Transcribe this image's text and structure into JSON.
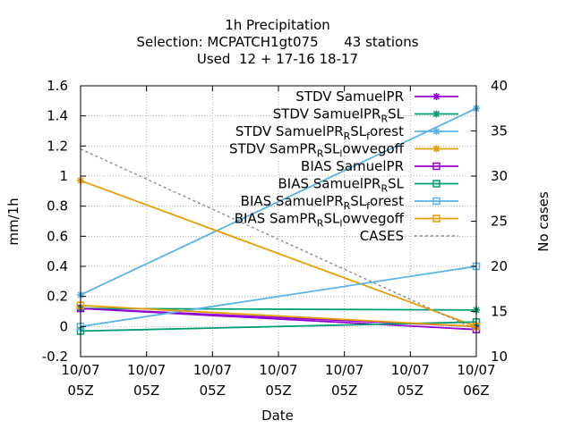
{
  "chart_data": {
    "type": "line",
    "title_lines": [
      "1h Precipitation",
      "Selection: MCPATCH1gt075      43 stations",
      "Used  12 + 17-16 18-17"
    ],
    "xlabel": "Date",
    "ylabel": "mm/1h",
    "y2label": "No cases",
    "ylim": [
      -0.2,
      1.6
    ],
    "y2lim": [
      10,
      40
    ],
    "yticks": [
      "-0.2",
      "0",
      "0.2",
      "0.4",
      "0.6",
      "0.8",
      "1",
      "1.2",
      "1.4",
      "1.6"
    ],
    "y2ticks": [
      "10",
      "15",
      "20",
      "25",
      "30",
      "35",
      "40"
    ],
    "xticks": [
      {
        "line1": "10/07",
        "line2": "05Z"
      },
      {
        "line1": "10/07",
        "line2": "05Z"
      },
      {
        "line1": "10/07",
        "line2": "05Z"
      },
      {
        "line1": "10/07",
        "line2": "05Z"
      },
      {
        "line1": "10/07",
        "line2": "05Z"
      },
      {
        "line1": "10/07",
        "line2": "05Z"
      },
      {
        "line1": "10/07",
        "line2": "06Z"
      }
    ],
    "grid": true,
    "legend_position": "top-right",
    "series": [
      {
        "name": "STDV SamuelPR",
        "name_sub": "",
        "color": "#9400d3",
        "marker": "star",
        "axis": "y",
        "dash": "",
        "values": [
          0.12,
          0.0
        ]
      },
      {
        "name": "STDV SamuelPR",
        "name_sub": "R",
        "name_tail": "SL",
        "color": "#009e73",
        "marker": "star",
        "axis": "y",
        "dash": "",
        "values": [
          0.12,
          0.11
        ]
      },
      {
        "name": "STDV SamuelPR",
        "name_sub": "R",
        "name_tail": "SL",
        "name_sub2": "f",
        "name_tail2": "orest",
        "color": "#56b4e9",
        "marker": "star",
        "axis": "y",
        "dash": "",
        "values": [
          0.21,
          1.45
        ]
      },
      {
        "name": "STDV SamPR",
        "name_sub": "R",
        "name_tail": "SL",
        "name_sub2": "l",
        "name_tail2": "owvegoff",
        "color": "#e69f00",
        "marker": "star",
        "axis": "y",
        "dash": "",
        "values": [
          0.97,
          0.0
        ]
      },
      {
        "name": "BIAS SamuelPR",
        "name_sub": "",
        "color": "#9400d3",
        "marker": "square",
        "axis": "y",
        "dash": "",
        "values": [
          0.12,
          -0.02
        ]
      },
      {
        "name": "BIAS SamuelPR",
        "name_sub": "R",
        "name_tail": "SL",
        "color": "#009e73",
        "marker": "square",
        "axis": "y",
        "dash": "",
        "values": [
          -0.03,
          0.03
        ]
      },
      {
        "name": "BIAS SamuelPR",
        "name_sub": "R",
        "name_tail": "SL",
        "name_sub2": "f",
        "name_tail2": "orest",
        "color": "#56b4e9",
        "marker": "square",
        "axis": "y",
        "dash": "",
        "values": [
          0.0,
          0.4
        ]
      },
      {
        "name": "BIAS SamPR",
        "name_sub": "R",
        "name_tail": "SL",
        "name_sub2": "l",
        "name_tail2": "owvegoff",
        "color": "#e69f00",
        "marker": "square",
        "axis": "y",
        "dash": "",
        "values": [
          0.14,
          0.0
        ]
      },
      {
        "name": "CASES",
        "name_sub": "",
        "color": "#8c8c8c",
        "marker": "none",
        "axis": "y2",
        "dash": "3,3",
        "values": [
          33,
          13
        ]
      }
    ]
  }
}
